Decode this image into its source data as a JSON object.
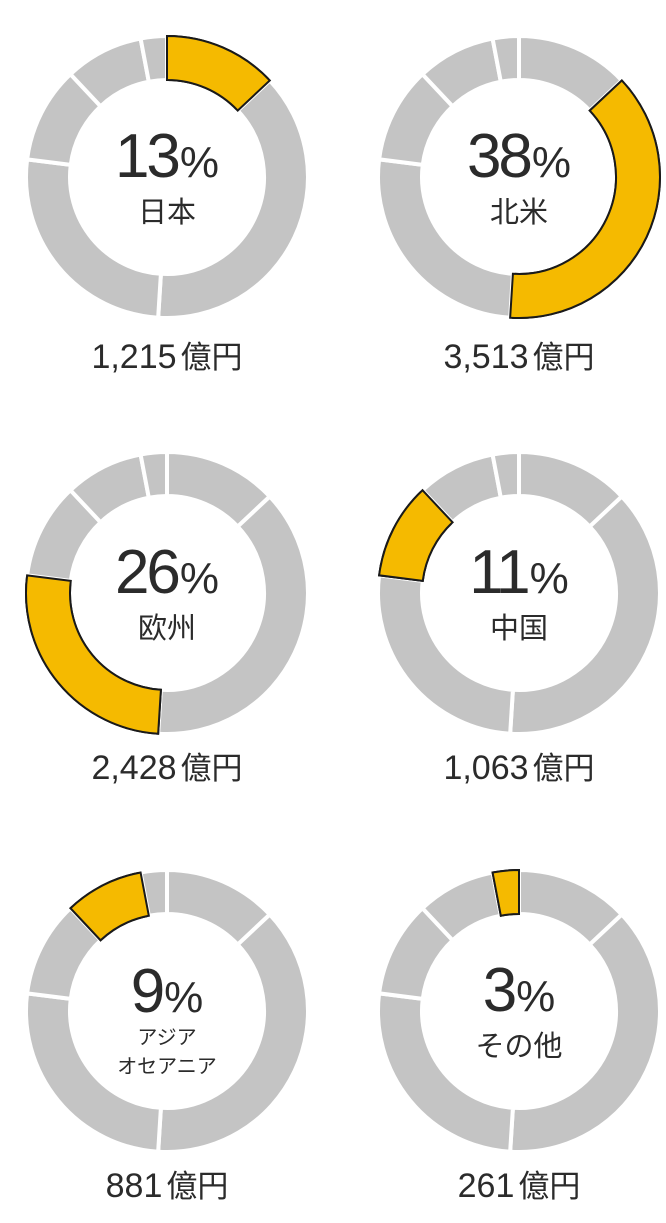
{
  "colors": {
    "highlight": "#F5BA00",
    "base": "#C4C4C4",
    "text": "#2B2B2B",
    "separator": "#FFFFFF"
  },
  "chart_data": {
    "type": "pie",
    "unit": "億円",
    "categories": [
      "日本",
      "北米",
      "欧州",
      "中国",
      "アジア オセアニア",
      "その他"
    ],
    "values": [
      1215,
      3513,
      2428,
      1063,
      881,
      261
    ],
    "percentages": [
      13,
      38,
      26,
      11,
      9,
      3
    ],
    "slices": [
      {
        "label": "日本",
        "label_lines": [
          "日本"
        ],
        "percent": "13",
        "amount": "1,215",
        "unit": "億円"
      },
      {
        "label": "北米",
        "label_lines": [
          "北米"
        ],
        "percent": "38",
        "amount": "3,513",
        "unit": "億円"
      },
      {
        "label": "欧州",
        "label_lines": [
          "欧州"
        ],
        "percent": "26",
        "amount": "2,428",
        "unit": "億円"
      },
      {
        "label": "中国",
        "label_lines": [
          "中国"
        ],
        "percent": "11",
        "amount": "1,063",
        "unit": "億円"
      },
      {
        "label": "アジア オセアニア",
        "label_lines": [
          "アジア",
          "オセアニア"
        ],
        "percent": "9",
        "amount": "881",
        "unit": "億円"
      },
      {
        "label": "その他",
        "label_lines": [
          "その他"
        ],
        "percent": "3",
        "amount": "261",
        "unit": "億円"
      }
    ],
    "percent_sign": "%",
    "legend": "none"
  }
}
